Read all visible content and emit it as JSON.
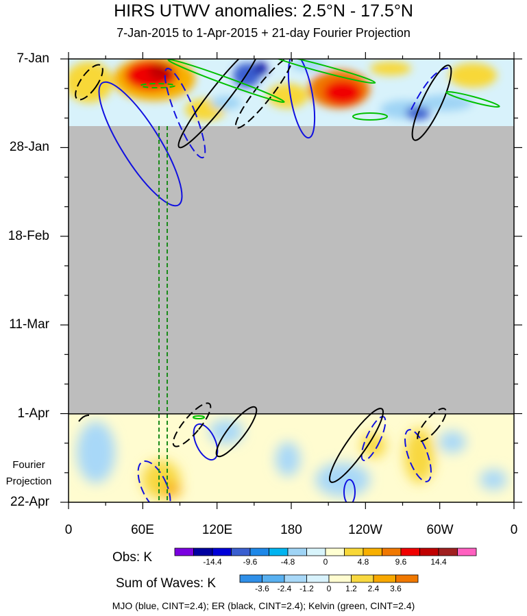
{
  "chart_data": {
    "type": "heatmap",
    "title": "HIRS UTWV anomalies: 2.5°N - 17.5°N",
    "subtitle": "7-Jan-2015 to 1-Apr-2015 + 21-day Fourier Projection",
    "y_tick_labels": [
      "7-Jan",
      "28-Jan",
      "18-Feb",
      "11-Mar",
      "1-Apr",
      "22-Apr"
    ],
    "x_tick_labels": [
      "0",
      "60E",
      "120E",
      "180",
      "120W",
      "60W",
      "0"
    ],
    "x_range_deg_east": [
      0,
      360
    ],
    "observed_period": "7-Jan-2015 to 1-Apr-2015",
    "observed_data_available_until": "23-Jan",
    "projection_label": "Fourier Projection",
    "obs_colorbar": {
      "title": "Obs: K",
      "labels": [
        "-14.4",
        "-9.6",
        "-4.8",
        "0",
        "4.8",
        "9.6",
        "14.4"
      ],
      "colors": [
        "#7a00e0",
        "#0000a0",
        "#0000d8",
        "#3a5fd0",
        "#1e88e8",
        "#00b4f0",
        "#9fd4f5",
        "#d8f4fb",
        "#ffffd2",
        "#f8d838",
        "#f8b000",
        "#f07800",
        "#f00000",
        "#c00000",
        "#a02020",
        "#ff60c0"
      ]
    },
    "waves_colorbar": {
      "title": "Sum of Waves: K",
      "labels": [
        "-3.6",
        "-2.4",
        "-1.2",
        "0",
        "1.2",
        "2.4",
        "3.6"
      ],
      "colors": [
        "#2f8fe8",
        "#58b0f0",
        "#a8d8f8",
        "#d8f2fc",
        "#fffcd0",
        "#f8d840",
        "#f8a800",
        "#f07800"
      ]
    },
    "contour_legend": "MJO (blue, CINT=2.4); ER (black, CINT=2.4); Kelvin (green, CINT=2.4)",
    "reference_lines_deg_east": [
      72,
      78
    ]
  }
}
